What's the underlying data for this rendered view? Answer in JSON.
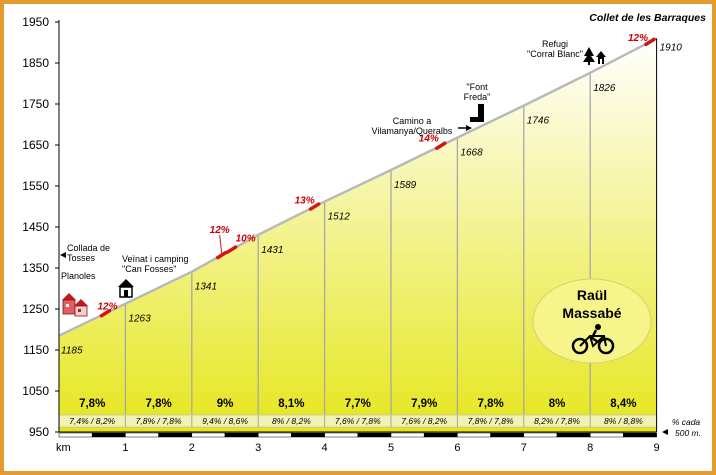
{
  "chart_data": {
    "type": "area",
    "title": "Collet de les Barraques",
    "xlabel": "km",
    "ylabel": "",
    "xlim": [
      0,
      9
    ],
    "ylim": [
      950,
      1950
    ],
    "y_ticks": [
      1950,
      1850,
      1750,
      1650,
      1550,
      1450,
      1350,
      1250,
      1150,
      1050,
      950
    ],
    "x_ticks": [
      1,
      2,
      3,
      4,
      5,
      6,
      7,
      8,
      9
    ],
    "x_axis_label": "km",
    "grid": false,
    "elevation_points": [
      {
        "km": 0,
        "elevation": 1185,
        "label": "1185"
      },
      {
        "km": 1,
        "elevation": 1263,
        "label": "1263"
      },
      {
        "km": 2,
        "elevation": 1341,
        "label": "1341"
      },
      {
        "km": 3,
        "elevation": 1431,
        "label": "1431"
      },
      {
        "km": 4,
        "elevation": 1512,
        "label": "1512"
      },
      {
        "km": 5,
        "elevation": 1589,
        "label": "1589"
      },
      {
        "km": 6,
        "elevation": 1668,
        "label": "1668"
      },
      {
        "km": 7,
        "elevation": 1746,
        "label": "1746"
      },
      {
        "km": 8,
        "elevation": 1826,
        "label": "1826"
      },
      {
        "km": 9,
        "elevation": 1910,
        "label": "1910"
      }
    ],
    "segment_gradients": [
      "7,8%",
      "7,8%",
      "9%",
      "8,1%",
      "7,7%",
      "7,9%",
      "7,8%",
      "8%",
      "8,4%"
    ],
    "half_km_gradients": [
      "7,4% / 8,2%",
      "7,8% / 7,8%",
      "9,4% / 8,6%",
      "8% / 8,2%",
      "7,6% / 7,8%",
      "7,6% / 8,2%",
      "7,8% / 7,8%",
      "8,2% / 7,8%",
      "8% / 8,8%"
    ],
    "half_km_note": [
      "% cada",
      "500 m."
    ],
    "steep_sections": [
      {
        "km": 0.7,
        "label": "12%"
      },
      {
        "km": 2.45,
        "label": "12%"
      },
      {
        "km": 2.6,
        "label": "10%"
      },
      {
        "km": 3.85,
        "label": "13%"
      },
      {
        "km": 5.75,
        "label": "14%"
      },
      {
        "km": 8.9,
        "label": "12%"
      }
    ],
    "places": [
      {
        "km": 0.1,
        "lines": [
          "Collada de",
          "Tosses"
        ],
        "color": "#123a8c"
      },
      {
        "km": 0.05,
        "lines": [
          "Planoles"
        ],
        "color": "#000000"
      },
      {
        "km": 1.0,
        "lines": [
          "Veïnat i camping",
          "\"Can Fosses\""
        ],
        "color": "#000000"
      },
      {
        "km": 5.5,
        "lines": [
          "Camino a",
          "Vilamanya/Queralbs"
        ],
        "color": "#123a8c"
      },
      {
        "km": 6.2,
        "lines": [
          "\"Font",
          "Freda\""
        ],
        "color": "#000000"
      },
      {
        "km": 7.9,
        "lines": [
          "Refugi",
          "\"Corral Blanc\""
        ],
        "color": "#000000"
      }
    ],
    "brand": [
      "Raül",
      "Massabé"
    ],
    "colors": {
      "frame": "#e39a2e",
      "fill_top": "#ffffff",
      "fill_bottom": "#e6e61e",
      "profile_line": "#b8b8b8",
      "steep": "#d21414",
      "badge": "#f7f48a"
    }
  }
}
